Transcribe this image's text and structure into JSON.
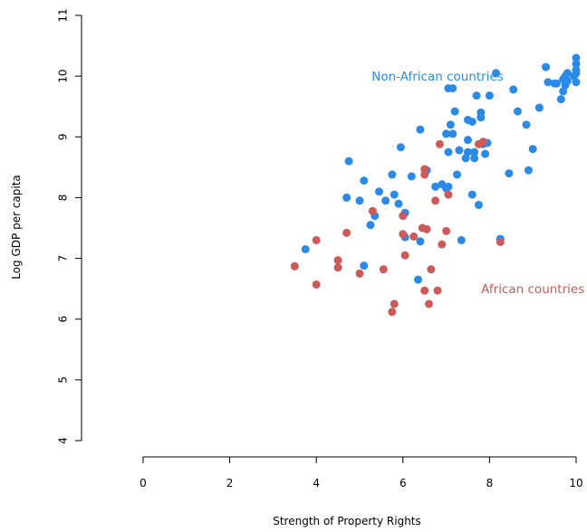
{
  "chart_data": {
    "type": "scatter",
    "xlabel": "Strength of Property Rights",
    "ylabel": "Log GDP per capita",
    "xlim": [
      0,
      10
    ],
    "ylim": [
      4,
      11
    ],
    "xticks": [
      "0",
      "2",
      "4",
      "6",
      "8",
      "10"
    ],
    "yticks": [
      "4",
      "5",
      "6",
      "7",
      "8",
      "9",
      "10",
      "11"
    ],
    "grid": false,
    "series": [
      {
        "name": "Non-African countries",
        "color": "#2b8ae8",
        "points": [
          [
            3.75,
            7.15
          ],
          [
            4.75,
            8.6
          ],
          [
            4.7,
            8.0
          ],
          [
            5.0,
            7.95
          ],
          [
            5.1,
            8.28
          ],
          [
            5.1,
            6.88
          ],
          [
            5.25,
            7.55
          ],
          [
            5.35,
            7.7
          ],
          [
            5.45,
            8.1
          ],
          [
            5.6,
            7.95
          ],
          [
            5.75,
            8.38
          ],
          [
            5.8,
            8.05
          ],
          [
            5.9,
            7.9
          ],
          [
            5.95,
            8.83
          ],
          [
            6.05,
            7.35
          ],
          [
            6.05,
            7.75
          ],
          [
            6.2,
            8.35
          ],
          [
            6.35,
            6.65
          ],
          [
            6.4,
            7.28
          ],
          [
            6.4,
            9.12
          ],
          [
            6.55,
            8.45
          ],
          [
            6.75,
            8.18
          ],
          [
            6.9,
            8.22
          ],
          [
            7.0,
            8.15
          ],
          [
            7.05,
            8.18
          ],
          [
            7.0,
            9.05
          ],
          [
            7.05,
            8.75
          ],
          [
            7.1,
            9.2
          ],
          [
            7.15,
            9.05
          ],
          [
            7.2,
            9.42
          ],
          [
            7.25,
            8.38
          ],
          [
            7.05,
            9.8
          ],
          [
            7.15,
            9.8
          ],
          [
            7.3,
            8.78
          ],
          [
            7.35,
            7.3
          ],
          [
            7.45,
            8.65
          ],
          [
            7.5,
            9.28
          ],
          [
            7.5,
            8.75
          ],
          [
            7.5,
            8.95
          ],
          [
            7.6,
            9.25
          ],
          [
            7.6,
            8.05
          ],
          [
            7.65,
            8.65
          ],
          [
            7.65,
            8.75
          ],
          [
            7.7,
            9.68
          ],
          [
            7.75,
            7.88
          ],
          [
            7.8,
            9.4
          ],
          [
            7.8,
            9.32
          ],
          [
            7.85,
            8.88
          ],
          [
            7.9,
            8.72
          ],
          [
            7.95,
            8.9
          ],
          [
            8.0,
            9.68
          ],
          [
            8.15,
            10.05
          ],
          [
            8.25,
            7.32
          ],
          [
            8.45,
            8.4
          ],
          [
            8.55,
            9.78
          ],
          [
            8.65,
            9.42
          ],
          [
            8.85,
            9.2
          ],
          [
            8.9,
            8.45
          ],
          [
            9.0,
            8.8
          ],
          [
            9.15,
            9.48
          ],
          [
            9.3,
            10.15
          ],
          [
            9.35,
            9.9
          ],
          [
            9.5,
            9.88
          ],
          [
            9.55,
            9.88
          ],
          [
            9.65,
            9.62
          ],
          [
            9.7,
            9.95
          ],
          [
            9.75,
            10.0
          ],
          [
            9.7,
            9.75
          ],
          [
            9.75,
            9.85
          ],
          [
            9.8,
            10.05
          ],
          [
            9.8,
            9.92
          ],
          [
            9.95,
            10.0
          ],
          [
            10.0,
            9.9
          ],
          [
            10.0,
            10.1
          ],
          [
            10.0,
            10.2
          ],
          [
            10.0,
            10.3
          ],
          [
            10.0,
            10.05
          ]
        ]
      },
      {
        "name": "African countries",
        "color": "#cc5a5a",
        "points": [
          [
            3.5,
            6.87
          ],
          [
            4.0,
            7.3
          ],
          [
            4.0,
            6.57
          ],
          [
            4.5,
            6.97
          ],
          [
            4.5,
            6.85
          ],
          [
            4.7,
            7.42
          ],
          [
            5.3,
            7.78
          ],
          [
            5.0,
            6.75
          ],
          [
            5.55,
            6.82
          ],
          [
            5.75,
            6.12
          ],
          [
            5.8,
            6.25
          ],
          [
            6.0,
            7.7
          ],
          [
            6.0,
            7.4
          ],
          [
            6.05,
            7.05
          ],
          [
            6.25,
            7.36
          ],
          [
            6.45,
            7.5
          ],
          [
            6.5,
            8.47
          ],
          [
            6.5,
            8.38
          ],
          [
            6.5,
            6.47
          ],
          [
            6.55,
            7.48
          ],
          [
            6.6,
            6.25
          ],
          [
            6.65,
            6.82
          ],
          [
            6.75,
            7.95
          ],
          [
            6.8,
            6.47
          ],
          [
            6.85,
            8.88
          ],
          [
            6.9,
            7.23
          ],
          [
            7.0,
            7.45
          ],
          [
            7.05,
            8.05
          ],
          [
            7.75,
            8.88
          ],
          [
            7.85,
            8.92
          ],
          [
            8.25,
            7.27
          ]
        ]
      }
    ],
    "annotations": [
      {
        "text": "Non-African countries",
        "x": 6.8,
        "y": 10.0,
        "series": 0
      },
      {
        "text": "African countries",
        "x": 9.0,
        "y": 6.5,
        "series": 1
      }
    ]
  }
}
